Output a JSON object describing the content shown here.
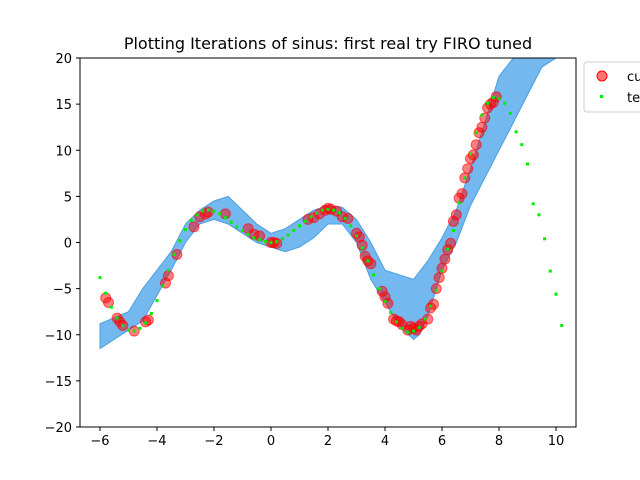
{
  "chart_data": {
    "type": "scatter",
    "title": "Plotting Iterations of sinus: first real try FIRO tuned",
    "xlabel": "",
    "ylabel": "",
    "xlim": [
      -6.7,
      10.7
    ],
    "ylim": [
      -20,
      20
    ],
    "x_ticks": [
      -6,
      -4,
      -2,
      0,
      2,
      4,
      6,
      8,
      10
    ],
    "y_ticks": [
      -20,
      -15,
      -10,
      -5,
      0,
      5,
      10,
      15,
      20
    ],
    "x_tick_labels": [
      "−6",
      "−4",
      "−2",
      "0",
      "2",
      "4",
      "6",
      "8",
      "10"
    ],
    "y_tick_labels": [
      "−20",
      "−15",
      "−10",
      "−5",
      "0",
      "5",
      "10",
      "15",
      "20"
    ],
    "grid": false,
    "legend": {
      "placement": "outside top-right",
      "entries": [
        {
          "label": "cu",
          "marker": "large-circle",
          "color": "#ff0000"
        },
        {
          "label": "te",
          "marker": "small-square",
          "color": "#00ee00"
        }
      ]
    },
    "colors": {
      "band": "#6cb4ee",
      "band_edge": "#4b9fe0",
      "current_points": "#ff0000",
      "target_points": "#00ee00"
    },
    "band": {
      "x": [
        -6.0,
        -5.0,
        -4.5,
        -3.5,
        -3.0,
        -2.5,
        -2.0,
        -1.5,
        -1.0,
        -0.5,
        0.0,
        0.5,
        1.0,
        1.5,
        2.0,
        2.5,
        3.0,
        3.5,
        4.0,
        4.5,
        5.0,
        5.2,
        5.5,
        6.0,
        6.5,
        7.0,
        7.5,
        8.0,
        8.5,
        9.0,
        9.5,
        10.0,
        10.7
      ],
      "upper": [
        -8.8,
        -7.5,
        -5.0,
        -1.0,
        2.0,
        3.5,
        4.5,
        5.0,
        3.5,
        2.0,
        1.0,
        1.5,
        2.5,
        3.5,
        4.0,
        3.8,
        2.5,
        0.0,
        -3.0,
        -3.5,
        -4.0,
        -3.2,
        -2.0,
        0.5,
        3.5,
        8.0,
        13.0,
        18.0,
        20.0,
        20.0,
        20.0,
        20.0,
        20.0
      ],
      "lower": [
        -11.5,
        -9.5,
        -8.5,
        -3.0,
        0.0,
        2.0,
        2.5,
        2.0,
        1.0,
        0.0,
        -0.5,
        -1.0,
        -0.5,
        0.5,
        2.0,
        2.0,
        0.0,
        -4.0,
        -6.5,
        -9.0,
        -10.5,
        -10.0,
        -8.0,
        -3.0,
        0.0,
        4.0,
        7.0,
        10.0,
        13.0,
        16.0,
        19.0,
        20.0,
        20.0
      ]
    },
    "series": [
      {
        "name": "cu",
        "marker": "circle",
        "points": [
          [
            -5.8,
            -6.0
          ],
          [
            -5.7,
            -6.5
          ],
          [
            -5.4,
            -8.2
          ],
          [
            -5.3,
            -8.6
          ],
          [
            -5.2,
            -9.0
          ],
          [
            -4.8,
            -9.6
          ],
          [
            -4.4,
            -8.6
          ],
          [
            -4.3,
            -8.4
          ],
          [
            -3.7,
            -4.4
          ],
          [
            -3.6,
            -3.6
          ],
          [
            -3.3,
            -1.3
          ],
          [
            -2.7,
            1.7
          ],
          [
            -2.5,
            2.8
          ],
          [
            -2.3,
            3.1
          ],
          [
            -2.2,
            3.3
          ],
          [
            -1.6,
            3.1
          ],
          [
            -0.8,
            1.5
          ],
          [
            -0.6,
            0.9
          ],
          [
            -0.4,
            0.7
          ],
          [
            0.0,
            0.0
          ],
          [
            0.1,
            0.0
          ],
          [
            0.2,
            -0.1
          ],
          [
            1.3,
            2.5
          ],
          [
            1.5,
            2.7
          ],
          [
            1.7,
            3.1
          ],
          [
            1.9,
            3.5
          ],
          [
            2.0,
            3.7
          ],
          [
            2.1,
            3.6
          ],
          [
            2.3,
            3.4
          ],
          [
            2.5,
            2.8
          ],
          [
            2.7,
            2.6
          ],
          [
            3.0,
            1.0
          ],
          [
            3.1,
            0.6
          ],
          [
            3.2,
            -0.3
          ],
          [
            3.3,
            -1.5
          ],
          [
            3.4,
            -2.0
          ],
          [
            3.5,
            -2.3
          ],
          [
            3.9,
            -5.3
          ],
          [
            4.0,
            -5.9
          ],
          [
            4.1,
            -6.6
          ],
          [
            4.3,
            -8.3
          ],
          [
            4.4,
            -8.5
          ],
          [
            4.5,
            -8.6
          ],
          [
            4.6,
            -8.9
          ],
          [
            4.8,
            -9.5
          ],
          [
            4.9,
            -9.1
          ],
          [
            5.0,
            -9.3
          ],
          [
            5.1,
            -9.5
          ],
          [
            5.2,
            -9.1
          ],
          [
            5.3,
            -8.8
          ],
          [
            5.5,
            -8.3
          ],
          [
            5.6,
            -7.1
          ],
          [
            5.7,
            -6.7
          ],
          [
            5.8,
            -5.0
          ],
          [
            5.9,
            -3.8
          ],
          [
            6.0,
            -2.8
          ],
          [
            6.1,
            -1.8
          ],
          [
            6.2,
            -0.8
          ],
          [
            6.3,
            -0.1
          ],
          [
            6.4,
            2.3
          ],
          [
            6.5,
            3.0
          ],
          [
            6.6,
            4.8
          ],
          [
            6.7,
            5.3
          ],
          [
            6.8,
            7.0
          ],
          [
            6.9,
            8.0
          ],
          [
            7.0,
            9.1
          ],
          [
            7.1,
            9.5
          ],
          [
            7.2,
            10.6
          ],
          [
            7.3,
            11.9
          ],
          [
            7.4,
            12.5
          ],
          [
            7.5,
            13.5
          ],
          [
            7.6,
            14.6
          ],
          [
            7.7,
            15.0
          ],
          [
            7.8,
            15.2
          ],
          [
            7.9,
            15.8
          ]
        ]
      },
      {
        "name": "te",
        "marker": "square",
        "points": [
          [
            -6.0,
            -3.8
          ],
          [
            -5.8,
            -5.5
          ],
          [
            -5.6,
            -7.0
          ],
          [
            -5.4,
            -8.2
          ],
          [
            -5.2,
            -9.0
          ],
          [
            -5.0,
            -9.5
          ],
          [
            -4.8,
            -9.6
          ],
          [
            -4.6,
            -9.3
          ],
          [
            -4.4,
            -8.7
          ],
          [
            -4.2,
            -7.7
          ],
          [
            -4.0,
            -6.3
          ],
          [
            -3.8,
            -4.7
          ],
          [
            -3.6,
            -3.0
          ],
          [
            -3.4,
            -1.3
          ],
          [
            -3.2,
            0.2
          ],
          [
            -3.0,
            1.4
          ],
          [
            -2.8,
            2.4
          ],
          [
            -2.6,
            3.0
          ],
          [
            -2.4,
            3.4
          ],
          [
            -2.2,
            3.5
          ],
          [
            -2.0,
            3.4
          ],
          [
            -1.8,
            3.1
          ],
          [
            -1.6,
            2.7
          ],
          [
            -1.4,
            2.2
          ],
          [
            -1.2,
            1.7
          ],
          [
            -1.0,
            1.3
          ],
          [
            -0.8,
            0.9
          ],
          [
            -0.6,
            0.5
          ],
          [
            -0.4,
            0.3
          ],
          [
            -0.2,
            0.1
          ],
          [
            0.0,
            0.0
          ],
          [
            0.2,
            0.1
          ],
          [
            0.4,
            0.4
          ],
          [
            0.6,
            0.8
          ],
          [
            0.8,
            1.3
          ],
          [
            1.0,
            1.8
          ],
          [
            1.2,
            2.3
          ],
          [
            1.4,
            2.8
          ],
          [
            1.6,
            3.2
          ],
          [
            1.8,
            3.5
          ],
          [
            2.0,
            3.6
          ],
          [
            2.2,
            3.5
          ],
          [
            2.4,
            3.2
          ],
          [
            2.6,
            2.6
          ],
          [
            2.8,
            1.8
          ],
          [
            3.0,
            0.7
          ],
          [
            3.2,
            -0.6
          ],
          [
            3.4,
            -2.0
          ],
          [
            3.6,
            -3.5
          ],
          [
            3.8,
            -5.0
          ],
          [
            4.0,
            -6.4
          ],
          [
            4.2,
            -7.6
          ],
          [
            4.4,
            -8.6
          ],
          [
            4.6,
            -9.3
          ],
          [
            4.8,
            -9.7
          ],
          [
            5.0,
            -9.6
          ],
          [
            5.2,
            -9.2
          ],
          [
            5.4,
            -8.3
          ],
          [
            5.6,
            -6.9
          ],
          [
            5.8,
            -5.2
          ],
          [
            6.0,
            -3.1
          ],
          [
            6.2,
            -0.7
          ],
          [
            6.4,
            1.3
          ],
          [
            6.6,
            4.3
          ],
          [
            6.8,
            7.0
          ],
          [
            7.0,
            9.6
          ],
          [
            7.2,
            11.9
          ],
          [
            7.4,
            13.8
          ],
          [
            7.6,
            15.1
          ],
          [
            7.8,
            15.7
          ],
          [
            8.0,
            15.6
          ],
          [
            8.2,
            15.1
          ],
          [
            8.4,
            14.0
          ],
          [
            8.6,
            12.0
          ],
          [
            8.8,
            10.6
          ],
          [
            9.0,
            8.5
          ],
          [
            9.2,
            4.2
          ],
          [
            9.4,
            3.0
          ],
          [
            9.6,
            0.4
          ],
          [
            9.8,
            -3.1
          ],
          [
            10.0,
            -5.6
          ],
          [
            10.2,
            -9.0
          ]
        ]
      }
    ]
  }
}
